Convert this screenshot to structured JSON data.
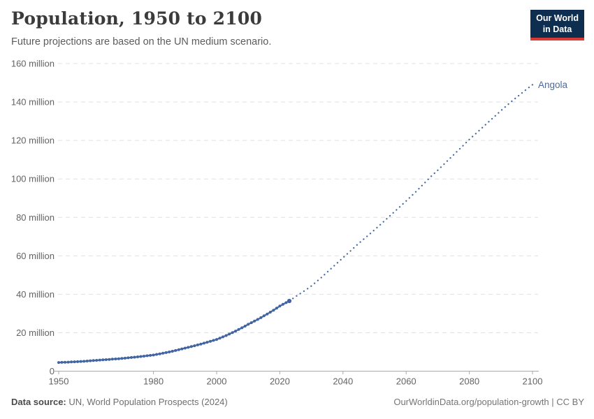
{
  "header": {
    "title": "Population, 1950 to 2100",
    "subtitle": "Future projections are based on the UN medium scenario.",
    "logo": {
      "line1": "Our World",
      "line2": "in Data",
      "bg_color": "#0d2e4e",
      "stripe_color": "#d93a34"
    }
  },
  "footer": {
    "source_label": "Data source:",
    "source_text": " UN, World Population Prospects (2024)",
    "link_text": "OurWorldinData.org/population-growth | CC BY"
  },
  "chart_data": {
    "type": "line",
    "title": "Population, 1950 to 2100",
    "subtitle": "Future projections are based on the UN medium scenario.",
    "entity": "Angola",
    "unit_suffix": " million",
    "zero_label": "0",
    "xlim": [
      1950,
      2100
    ],
    "ylim": [
      0,
      160
    ],
    "x_ticks": [
      1950,
      1980,
      2000,
      2020,
      2040,
      2060,
      2080,
      2100
    ],
    "y_ticks": [
      0,
      20,
      40,
      60,
      80,
      100,
      120,
      140,
      160
    ],
    "grid": true,
    "legend_position": "end-of-line-label",
    "line_color": "#4165a2",
    "label_color": "#4c6a9c",
    "grid_color": "#e0e0e0",
    "axis_color": "#a9a9a9",
    "tick_text_color": "#636363",
    "series": [
      {
        "name": "Angola (historical estimates)",
        "style": "solid-with-markers",
        "start_year": 1950,
        "values": [
          4.5,
          4.56,
          4.63,
          4.7,
          4.78,
          4.86,
          4.95,
          5.04,
          5.13,
          5.26,
          5.4,
          5.52,
          5.64,
          5.76,
          5.88,
          6.0,
          6.11,
          6.23,
          6.35,
          6.47,
          6.6,
          6.77,
          6.94,
          7.11,
          7.28,
          7.45,
          7.63,
          7.82,
          8.01,
          8.2,
          8.4,
          8.7,
          9.0,
          9.32,
          9.65,
          10.0,
          10.37,
          10.76,
          11.16,
          11.57,
          12.0,
          12.39,
          12.79,
          13.21,
          13.64,
          14.09,
          14.55,
          15.03,
          15.52,
          16.0,
          16.5,
          17.15,
          17.83,
          18.54,
          19.28,
          20.05,
          20.85,
          21.68,
          22.54,
          23.44,
          24.38,
          25.2,
          26.05,
          26.92,
          27.82,
          28.75,
          29.71,
          30.7,
          31.72,
          32.78,
          33.87,
          34.75,
          35.62,
          36.5
        ]
      },
      {
        "name": "Angola (UN medium projection)",
        "style": "dotted",
        "points": [
          [
            2023,
            36.5
          ],
          [
            2025,
            38.8
          ],
          [
            2028,
            42.0
          ],
          [
            2030,
            44.3
          ],
          [
            2033,
            48.5
          ],
          [
            2035,
            51.5
          ],
          [
            2038,
            56.0
          ],
          [
            2040,
            59.0
          ],
          [
            2043,
            63.5
          ],
          [
            2045,
            66.5
          ],
          [
            2048,
            70.7
          ],
          [
            2050,
            73.5
          ],
          [
            2053,
            78.0
          ],
          [
            2055,
            81.0
          ],
          [
            2058,
            85.5
          ],
          [
            2060,
            88.5
          ],
          [
            2063,
            93.2
          ],
          [
            2065,
            96.5
          ],
          [
            2068,
            101.5
          ],
          [
            2070,
            104.5
          ],
          [
            2073,
            109.3
          ],
          [
            2075,
            112.5
          ],
          [
            2078,
            117.3
          ],
          [
            2080,
            120.5
          ],
          [
            2083,
            125.0
          ],
          [
            2085,
            128.0
          ],
          [
            2088,
            132.5
          ],
          [
            2090,
            135.5
          ],
          [
            2093,
            139.8
          ],
          [
            2095,
            142.5
          ],
          [
            2098,
            146.5
          ],
          [
            2100,
            149.0
          ]
        ]
      }
    ]
  }
}
